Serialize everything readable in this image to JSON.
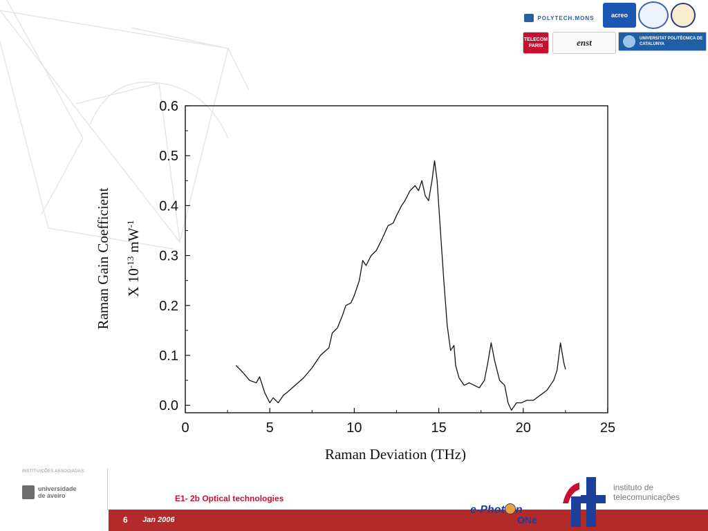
{
  "logos": {
    "polytech": "POLYTECH.MONS",
    "acreo": "acreo",
    "telecom": "TELECOM PARIS",
    "enst": "enst",
    "upc": "UNIVERSITAT POLITÈCNICA DE CATALUNYA"
  },
  "footer": {
    "associated_label": "INSTITUIÇÕES ASSOCIADAS:",
    "ua_name_line1": "universidade",
    "ua_name_line2": "de aveiro",
    "course_title": "E1- 2b Optical technologies",
    "page_number": "6",
    "date": "Jan 2006",
    "ephoton_main_pre": "e-Phot",
    "ephoton_main_post": "n",
    "ephoton_sub": "ONe",
    "it_line1": "instituto de",
    "it_line2": "telecomunicações"
  },
  "colors": {
    "accent_red": "#b22a2a",
    "title_red": "#c8102e",
    "ephoton_blue": "#1d3f9c",
    "curve": "#111111"
  },
  "chart_data": {
    "type": "line",
    "title": "",
    "xlabel": "Raman Deviation (THz)",
    "ylabel_line1": "Raman Gain Coefficient",
    "ylabel_line2": "X 10-13 mW-1",
    "xlim": [
      0,
      25
    ],
    "ylim": [
      -0.015,
      0.6
    ],
    "x_ticks": [
      0,
      5,
      10,
      15,
      20,
      25
    ],
    "x_tick_labels": [
      "0",
      "5",
      "10",
      "15",
      "20",
      "25"
    ],
    "y_ticks": [
      0.0,
      0.1,
      0.2,
      0.3,
      0.4,
      0.5,
      0.6
    ],
    "y_tick_labels": [
      "0.0",
      "0.1",
      "0.2",
      "0.3",
      "0.4",
      "0.5",
      "0.6"
    ],
    "series": [
      {
        "name": "",
        "x": [
          3.0,
          3.4,
          3.8,
          4.2,
          4.4,
          4.7,
          5.0,
          5.2,
          5.5,
          5.8,
          6.0,
          6.5,
          7.0,
          7.5,
          8.0,
          8.5,
          8.7,
          9.0,
          9.3,
          9.5,
          9.8,
          10.0,
          10.3,
          10.5,
          10.7,
          11.0,
          11.3,
          11.6,
          11.8,
          12.0,
          12.3,
          12.5,
          12.8,
          13.0,
          13.3,
          13.6,
          13.8,
          14.0,
          14.2,
          14.4,
          14.6,
          14.75,
          14.9,
          15.1,
          15.3,
          15.5,
          15.7,
          15.9,
          16.0,
          16.2,
          16.5,
          16.8,
          17.1,
          17.4,
          17.7,
          17.9,
          18.1,
          18.3,
          18.6,
          18.9,
          19.1,
          19.3,
          19.6,
          19.9,
          20.2,
          20.6,
          21.0,
          21.4,
          21.8,
          22.0,
          22.2,
          22.4,
          22.5
        ],
        "values": [
          0.08,
          0.066,
          0.05,
          0.045,
          0.057,
          0.025,
          0.005,
          0.015,
          0.005,
          0.02,
          0.025,
          0.04,
          0.055,
          0.075,
          0.1,
          0.115,
          0.145,
          0.155,
          0.18,
          0.2,
          0.205,
          0.22,
          0.25,
          0.29,
          0.28,
          0.3,
          0.31,
          0.33,
          0.345,
          0.36,
          0.365,
          0.38,
          0.4,
          0.41,
          0.43,
          0.44,
          0.43,
          0.45,
          0.42,
          0.41,
          0.45,
          0.49,
          0.45,
          0.35,
          0.25,
          0.16,
          0.11,
          0.12,
          0.08,
          0.055,
          0.04,
          0.045,
          0.04,
          0.035,
          0.05,
          0.085,
          0.125,
          0.09,
          0.05,
          0.04,
          0.005,
          -0.01,
          0.005,
          0.005,
          0.01,
          0.01,
          0.02,
          0.03,
          0.05,
          0.07,
          0.125,
          0.085,
          0.072
        ]
      }
    ]
  }
}
